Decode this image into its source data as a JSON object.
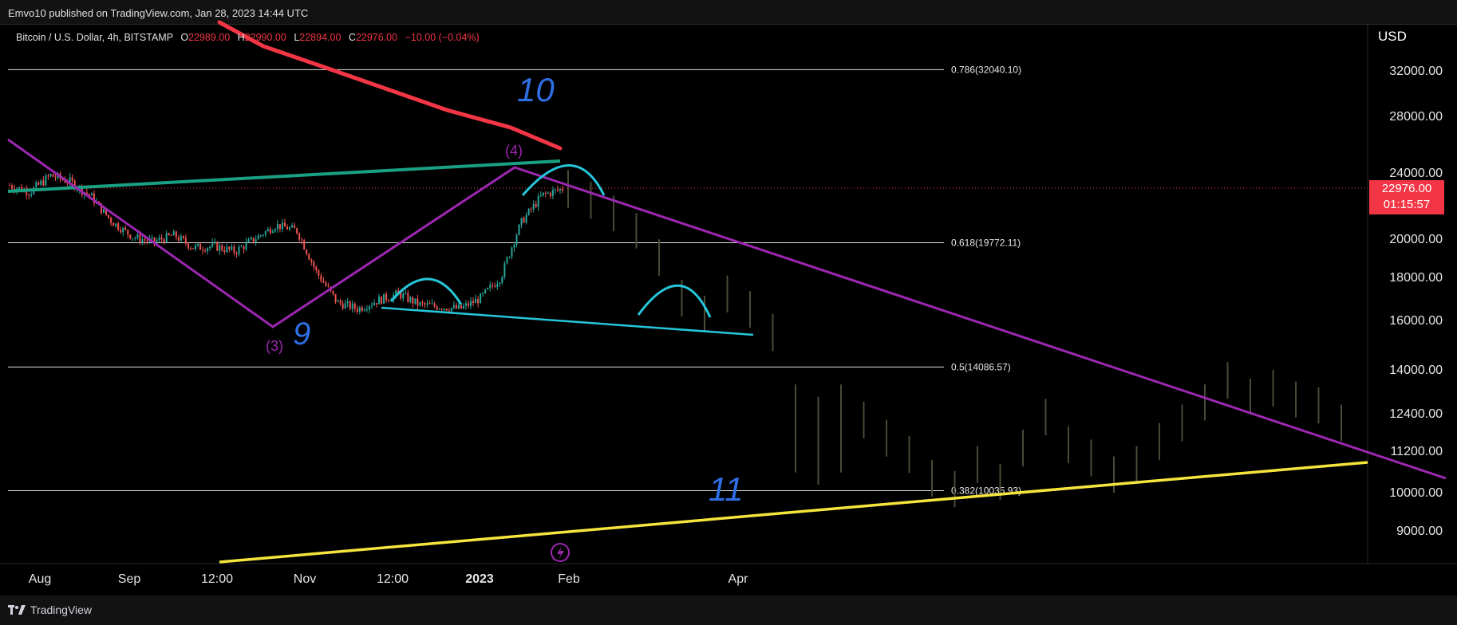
{
  "header": {
    "published": "Emvo10 published on TradingView.com, Jan 28, 2023 14:44 UTC"
  },
  "legend": {
    "symbol": "Bitcoin / U.S. Dollar, 4h, BITSTAMP",
    "o_label": "O",
    "o_value": "22989.00",
    "h_label": "H",
    "h_value": "22990.00",
    "l_label": "L",
    "l_value": "22894.00",
    "c_label": "C",
    "c_value": "22976.00",
    "change": "−10.00 (−0.04%)"
  },
  "axis": {
    "currency": "USD"
  },
  "price_tag": {
    "price": "22976.00",
    "countdown": "01:15:57"
  },
  "brand": "TradingView",
  "colors": {
    "fib": "#e0e0e0",
    "purple": "#9c27b0",
    "red": "#f23645",
    "teal": "#1aa083",
    "cyan": "#26c6da",
    "yellow": "#f5e53d",
    "blue_label": "#2f6fe4",
    "bull": "#26a69a",
    "bear": "#ef5350"
  },
  "chart_data": {
    "type": "candlestick",
    "title": "Bitcoin / U.S. Dollar, 4h, BITSTAMP",
    "y_ticks": [
      32000,
      28000,
      24000,
      20000,
      18000,
      16000,
      14000,
      12400,
      11200,
      10000,
      9000
    ],
    "y_tick_labels": [
      "32000.00",
      "28000.00",
      "24000.00",
      "20000.00",
      "18000.00",
      "16000.00",
      "14000.00",
      "12400.00",
      "11200.00",
      "10000.00",
      "9000.00"
    ],
    "x_ticks": [
      "Aug",
      "Sep",
      "12:00",
      "Nov",
      "12:00",
      "2023",
      "Feb",
      "Apr"
    ],
    "last_price": 22976.0,
    "fib_levels": [
      {
        "ratio": "0.786",
        "price": 32040.1,
        "label": "0.786(32040.10)"
      },
      {
        "ratio": "0.618",
        "price": 19772.11,
        "label": "0.618(19772.11)"
      },
      {
        "ratio": "0.5",
        "price": 14086.57,
        "label": "0.5(14086.57)"
      },
      {
        "ratio": "0.382",
        "price": 10035.93,
        "label": "0.382(10035.93)"
      }
    ],
    "wave_labels": [
      "(3)",
      "(4)",
      "9",
      "10",
      "11"
    ],
    "historical_close_path": [
      23200,
      22800,
      23800,
      23400,
      22500,
      21000,
      20100,
      19800,
      20200,
      19500,
      19600,
      19300,
      20000,
      20800,
      20500,
      18200,
      16800,
      16500,
      16900,
      17200,
      16700,
      16600,
      16500,
      17000,
      18000,
      21000,
      22600,
      23000
    ],
    "projected_ghost_path": [
      23000,
      22300,
      21500,
      20500,
      19000,
      17000,
      16300,
      17200,
      16500,
      15500,
      12000,
      11600,
      12000,
      12200,
      11600,
      11100,
      10400,
      10100,
      10800,
      10300,
      11300,
      12300,
      11400,
      11000,
      10500,
      10800,
      11500,
      12100,
      12800,
      13600,
      13000,
      13300,
      12900,
      12700,
      12100
    ]
  }
}
